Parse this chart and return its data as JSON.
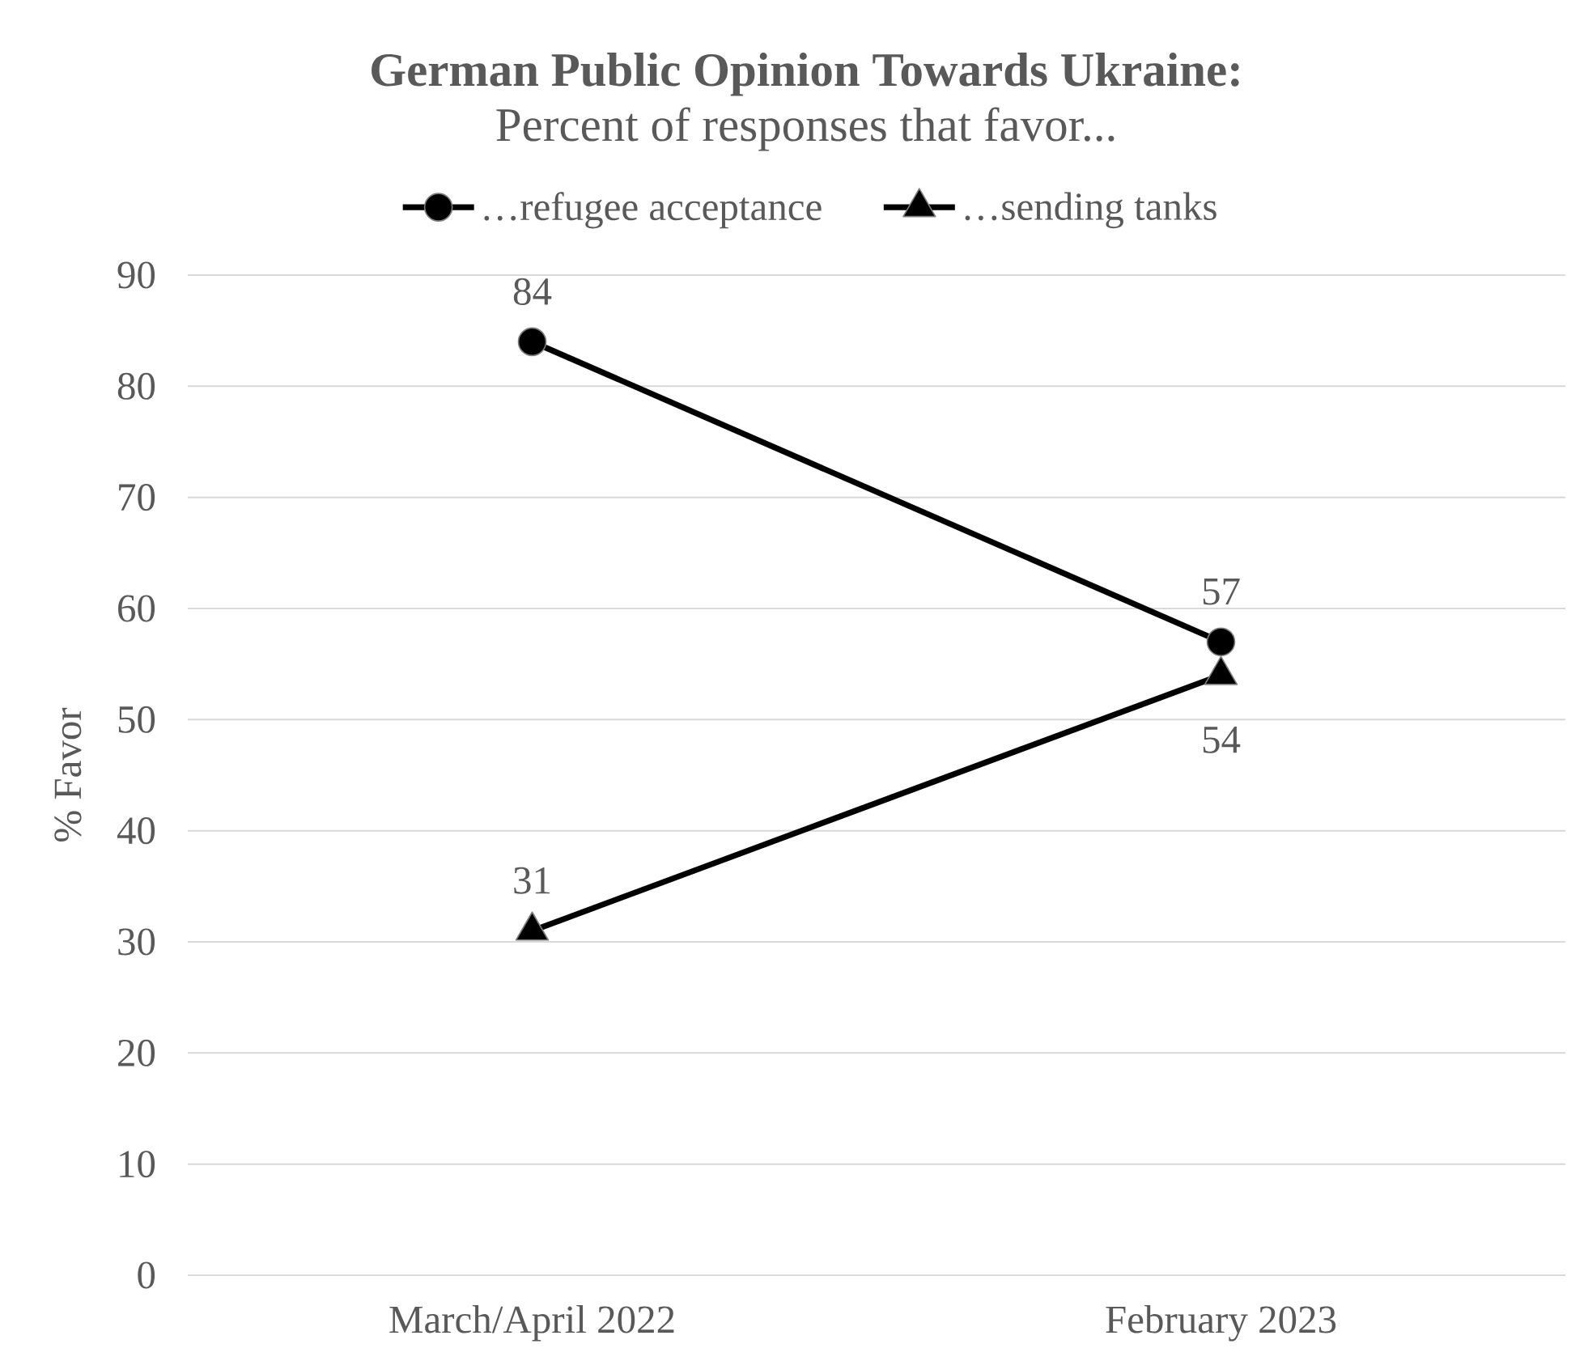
{
  "chart_data": {
    "type": "line",
    "title": "German Public Opinion Towards Ukraine:",
    "subtitle": "Percent of responses that favor...",
    "ylabel": "% Favor",
    "categories": [
      "March/April 2022",
      "February 2023"
    ],
    "series": [
      {
        "name": "…refugee acceptance",
        "color": "#000000",
        "marker": "circle",
        "values": [
          84,
          57
        ]
      },
      {
        "name": "…sending tanks",
        "color": "#000000",
        "marker": "triangle",
        "values": [
          31,
          54
        ]
      }
    ],
    "ylim": [
      0,
      90
    ],
    "yticks": [
      0,
      10,
      20,
      30,
      40,
      50,
      60,
      70,
      80,
      90
    ],
    "grid": "y",
    "legend": "top",
    "data_labels": true
  }
}
